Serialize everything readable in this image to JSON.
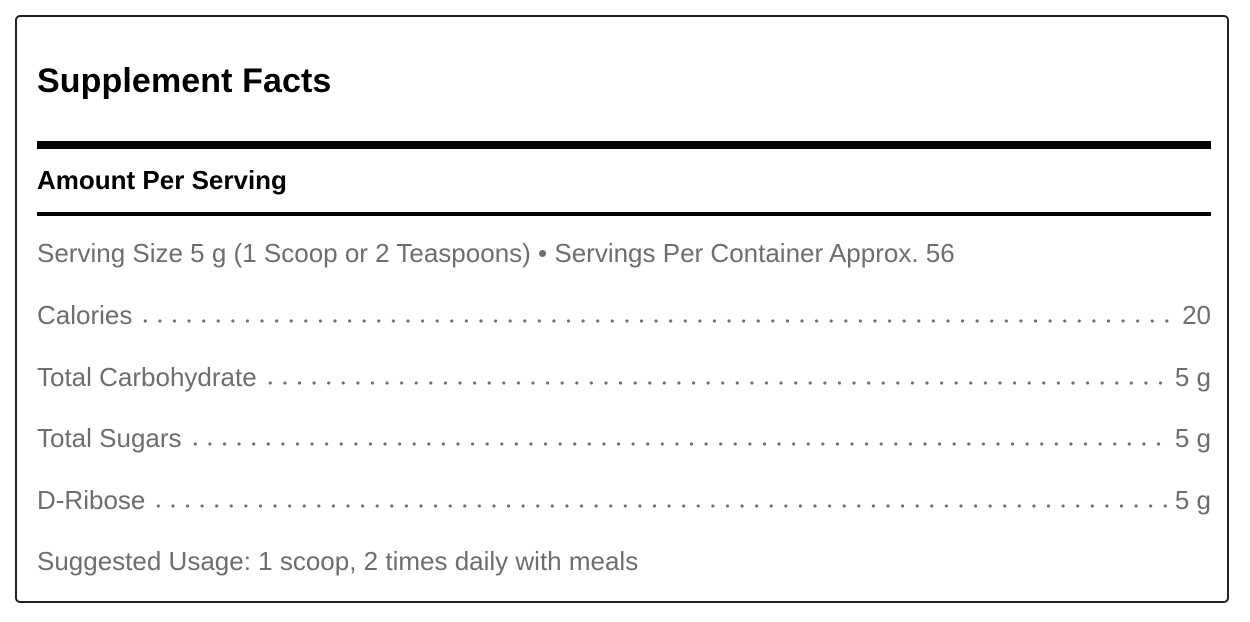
{
  "title": "Supplement Facts",
  "amount_heading": "Amount Per Serving",
  "serving_info": "Serving Size 5 g (1 Scoop or 2 Teaspoons) • Servings Per Container Approx. 56",
  "nutrients": [
    {
      "label": "Calories",
      "value": "20"
    },
    {
      "label": "Total Carbohydrate",
      "value": "5 g"
    },
    {
      "label": "Total Sugars",
      "value": "5 g"
    },
    {
      "label": "D-Ribose",
      "value": "5 g"
    }
  ],
  "suggested_usage": "Suggested Usage: 1 scoop, 2 times daily with meals",
  "colors": {
    "text_primary": "#000000",
    "text_secondary": "#6e6e6e",
    "border": "#222222"
  }
}
